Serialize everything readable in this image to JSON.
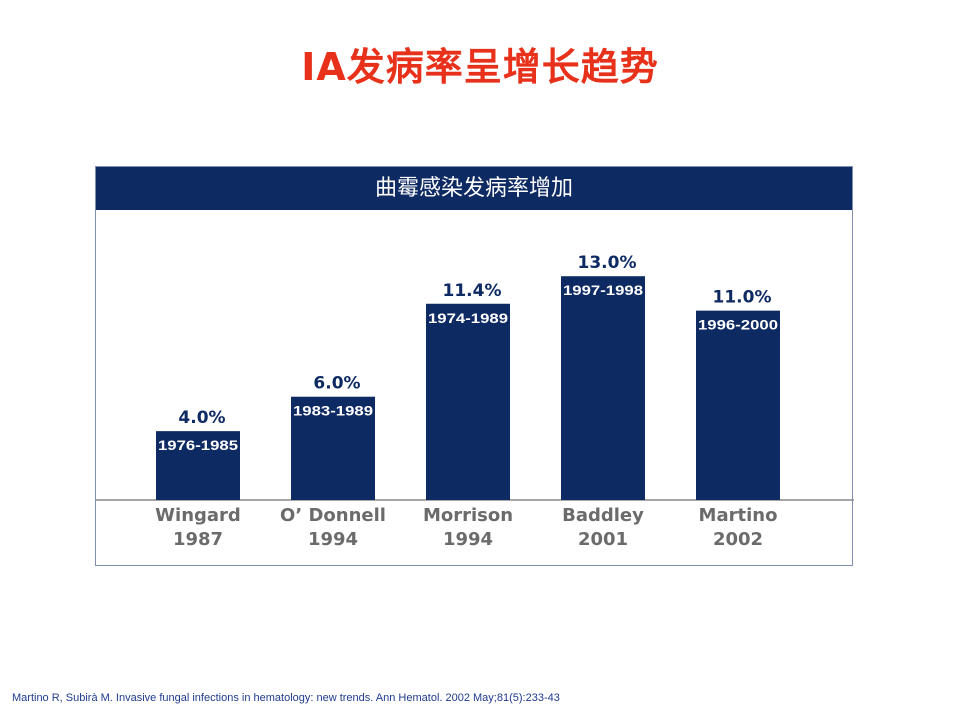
{
  "slide": {
    "title": "IA发病率呈增长趋势",
    "citation": "Martino R, Subirà M. Invasive fungal infections in hematology: new trends. Ann Hematol. 2002 May;81(5):233-43"
  },
  "chart_data": {
    "type": "bar",
    "title": "曲霉感染发病率增加",
    "categories": [
      "Wingard\n1987",
      "O’ Donnell\n1994",
      "Morrison\n1994",
      "Baddley\n2001",
      "Martino\n2002"
    ],
    "values": [
      4.0,
      6.0,
      11.4,
      13.0,
      11.0
    ],
    "value_labels": [
      "4.0%",
      "6.0%",
      "11.4%",
      "13.0%",
      "11.0%"
    ],
    "period_labels": [
      "1976-1985",
      "1983-1989",
      "1974-1989",
      "1997-1998",
      "1996-2000"
    ],
    "unit": "%",
    "ylim": [
      0,
      14
    ],
    "grid": false,
    "colors": {
      "bar": "#0e2a62",
      "header": "#0e2a62",
      "title": "#e8311a",
      "value_text": "#0e2a62",
      "category_text": "#6b6b6b"
    }
  }
}
